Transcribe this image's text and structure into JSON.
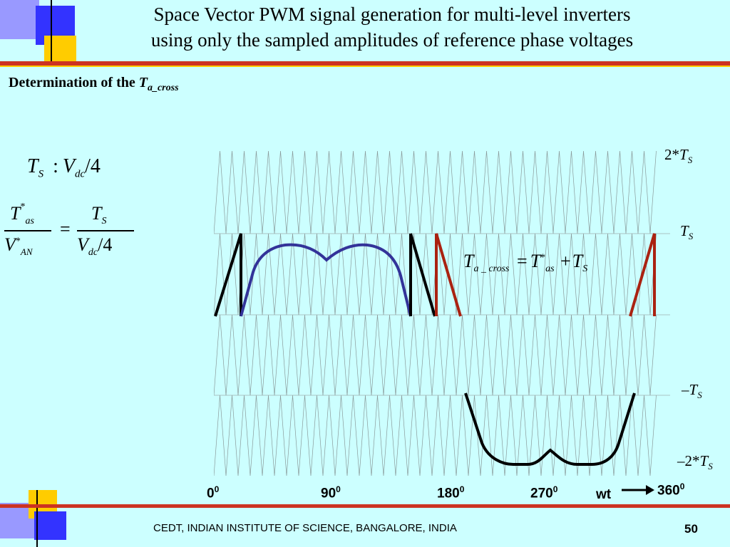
{
  "title_line1": "Space Vector PWM signal generation for multi-level inverters",
  "title_line2": "using only the sampled amplitudes of reference phase voltages",
  "subheading_prefix": "Determination of the ",
  "subheading_symbol": "T",
  "subheading_subscript": "a_cross",
  "eq_ts": {
    "lhs": "T",
    "lhs_sub": "S",
    "op": ":",
    "rhs": "V",
    "rhs_sub": "dc",
    "tail": "/4"
  },
  "eq_ratio": {
    "num_left": "T",
    "num_left_sup": "*",
    "num_left_sub": "as",
    "den_left": "V",
    "den_left_sup": "*",
    "den_left_sub": "AN",
    "eq": "=",
    "num_right": "T",
    "num_right_sub": "S",
    "den_right": "V",
    "den_right_sub": "dc",
    "den_right_tail": "/4"
  },
  "eq_cross": {
    "lhs": "T",
    "lhs_sub": "a _ cross",
    "eq": "=",
    "t1": "T",
    "t1_sup": "*",
    "t1_sub": "as",
    "plus": "+",
    "t2": "T",
    "t2_sub": "S"
  },
  "y_labels": {
    "top": {
      "prefix": "2*",
      "sym": "T",
      "sub": "S"
    },
    "upper": {
      "prefix": "",
      "sym": "T",
      "sub": "S"
    },
    "lower": {
      "prefix": "–",
      "sym": "T",
      "sub": "S"
    },
    "bottom": {
      "prefix": "–2*",
      "sym": "T",
      "sub": "S"
    }
  },
  "x_labels": [
    {
      "base": "0",
      "sup": "0"
    },
    {
      "base": "90",
      "sup": "0"
    },
    {
      "base": "180",
      "sup": "0"
    },
    {
      "base": "270",
      "sup": "0"
    },
    {
      "base": "360",
      "sup": "0"
    }
  ],
  "x_axis_name": "wt",
  "footer": "CEDT, INDIAN INSTITUTE OF SCIENCE, BANGALORE, INDIA",
  "page_number": "50",
  "colors": {
    "background": "#ccffff",
    "accent_red": "#cc3322",
    "blue_curve": "#333399",
    "dark_red": "#aa2211",
    "yellow": "#ffcc00",
    "blue_square": "#3333ff",
    "lavender": "#9999ff"
  }
}
